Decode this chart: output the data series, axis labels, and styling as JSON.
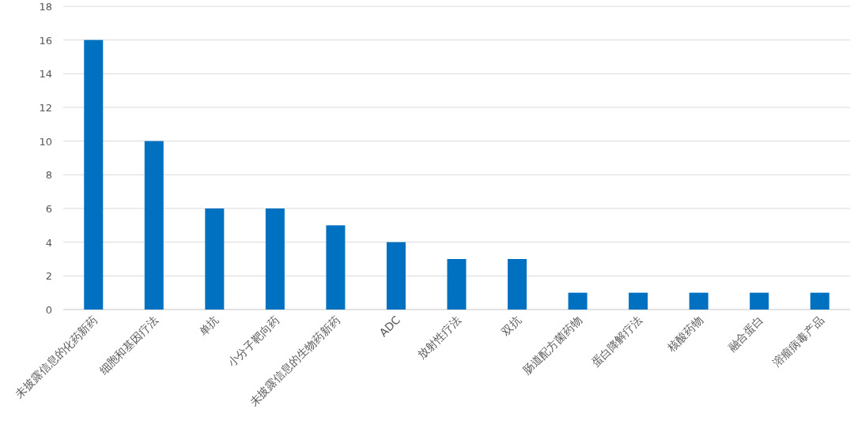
{
  "chart_data": {
    "type": "bar",
    "categories": [
      "未披露信息的化药新药",
      "细胞和基因疗法",
      "单抗",
      "小分子靶向药",
      "未披露信息的生物药新药",
      "ADC",
      "放射性疗法",
      "双抗",
      "肠道配方菌药物",
      "蛋白降解疗法",
      "核酸药物",
      "融合蛋白",
      "溶瘤病毒产品"
    ],
    "values": [
      16,
      10,
      6,
      6,
      5,
      4,
      3,
      3,
      1,
      1,
      1,
      1,
      1
    ],
    "color": "#0070c0",
    "ylim": [
      0,
      18
    ],
    "yticks": [
      0,
      2,
      4,
      6,
      8,
      10,
      12,
      14,
      16,
      18
    ],
    "grid": "y"
  }
}
